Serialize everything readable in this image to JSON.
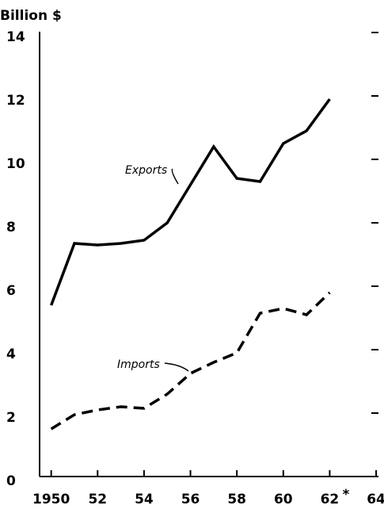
{
  "chart_data": {
    "type": "line",
    "ylabel": "Billion $",
    "x": [
      1950,
      1951,
      1952,
      1953,
      1954,
      1955,
      1956,
      1957,
      1958,
      1959,
      1960,
      1961,
      1962
    ],
    "series": [
      {
        "name": "Exports",
        "color": "#000000",
        "line_style": "solid",
        "values": [
          5.4,
          7.35,
          7.3,
          7.35,
          7.45,
          8.0,
          9.2,
          10.4,
          9.4,
          9.3,
          10.5,
          10.9,
          11.9
        ]
      },
      {
        "name": "Imports",
        "color": "#000000",
        "line_style": "dashed",
        "values": [
          1.5,
          1.95,
          2.1,
          2.2,
          2.15,
          2.6,
          3.25,
          3.6,
          3.9,
          5.15,
          5.3,
          5.1,
          5.8
        ]
      }
    ],
    "xlim": [
      1949.5,
      1964.1
    ],
    "ylim": [
      0,
      14
    ],
    "xticks": [
      {
        "value": 1950,
        "label": "1950"
      },
      {
        "value": 1952,
        "label": "52"
      },
      {
        "value": 1954,
        "label": "54"
      },
      {
        "value": 1956,
        "label": "56"
      },
      {
        "value": 1958,
        "label": "58"
      },
      {
        "value": 1960,
        "label": "60"
      },
      {
        "value": 1962,
        "label": "62"
      },
      {
        "value": 1964,
        "label": "64"
      }
    ],
    "yticks": [
      0,
      2,
      4,
      6,
      8,
      10,
      12,
      14
    ],
    "annotations": [
      "*"
    ]
  }
}
